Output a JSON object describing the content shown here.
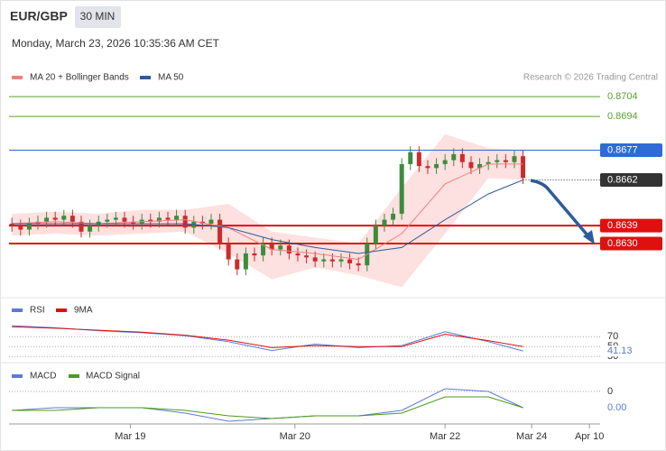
{
  "header": {
    "symbol": "EUR/GBP",
    "timeframe": "30 MIN",
    "datetime": "Monday, March 23, 2026 10:35:36 AM CET",
    "credit": "Research © 2026 Trading Central"
  },
  "chart_data": [
    {
      "type": "candlestick",
      "xlim": [
        0,
        204.7
      ],
      "xticks": [
        {
          "value": 42,
          "label": "Mar 19"
        },
        {
          "value": 99,
          "label": "Mar 20"
        },
        {
          "value": 151,
          "label": "Mar 22"
        },
        {
          "value": 181,
          "label": "Mar 24"
        },
        {
          "value": 201,
          "label": "Apr 10"
        }
      ],
      "ylim": [
        0.8605,
        0.87095
      ],
      "up_color": "#3c8c3c",
      "down_color": "#cc2b2b",
      "x": [
        1,
        4,
        7,
        10,
        13,
        16,
        19,
        22,
        25,
        28,
        31,
        34,
        37,
        40,
        43,
        46,
        49,
        52,
        55,
        58,
        61,
        64,
        67,
        70,
        73,
        76,
        79,
        82,
        85,
        88,
        91,
        94,
        97,
        100,
        103,
        106,
        109,
        112,
        115,
        118,
        121,
        124,
        127,
        130,
        133,
        136,
        139,
        142,
        145,
        148,
        151,
        154,
        157,
        160,
        163,
        166,
        169,
        172,
        175,
        178
      ],
      "open": [
        0.864,
        0.8639,
        0.8637,
        0.864,
        0.8641,
        0.8643,
        0.8642,
        0.8644,
        0.8641,
        0.8636,
        0.8639,
        0.8641,
        0.8642,
        0.8643,
        0.8641,
        0.864,
        0.8642,
        0.8641,
        0.8643,
        0.8642,
        0.8644,
        0.8638,
        0.8641,
        0.864,
        0.8642,
        0.863,
        0.8622,
        0.8617,
        0.8625,
        0.8624,
        0.863,
        0.8627,
        0.8629,
        0.8625,
        0.8624,
        0.8623,
        0.8621,
        0.8622,
        0.8621,
        0.8622,
        0.862,
        0.8619,
        0.863,
        0.8639,
        0.8642,
        0.8645,
        0.867,
        0.8676,
        0.8669,
        0.8668,
        0.867,
        0.8672,
        0.8675,
        0.8671,
        0.8668,
        0.867,
        0.8671,
        0.8672,
        0.8671,
        0.8674
      ],
      "high": [
        0.8643,
        0.8642,
        0.8643,
        0.8644,
        0.8646,
        0.8646,
        0.8647,
        0.8647,
        0.8644,
        0.8642,
        0.8644,
        0.8645,
        0.8646,
        0.8646,
        0.8644,
        0.8645,
        0.8645,
        0.8646,
        0.8646,
        0.8647,
        0.8647,
        0.8644,
        0.8644,
        0.8645,
        0.8645,
        0.8633,
        0.8625,
        0.8628,
        0.8628,
        0.8633,
        0.8633,
        0.8632,
        0.8632,
        0.8628,
        0.8627,
        0.8626,
        0.8625,
        0.8625,
        0.8625,
        0.8625,
        0.8623,
        0.8633,
        0.8642,
        0.8645,
        0.8648,
        0.8673,
        0.8679,
        0.8679,
        0.8672,
        0.8673,
        0.8675,
        0.8678,
        0.8678,
        0.8674,
        0.8673,
        0.8674,
        0.8675,
        0.8675,
        0.8677,
        0.8677
      ],
      "low": [
        0.8636,
        0.8634,
        0.8634,
        0.8637,
        0.8638,
        0.8639,
        0.8639,
        0.8638,
        0.8633,
        0.8633,
        0.8636,
        0.8638,
        0.8639,
        0.8638,
        0.8637,
        0.8637,
        0.8638,
        0.8638,
        0.8639,
        0.8639,
        0.8635,
        0.8635,
        0.8637,
        0.8637,
        0.8627,
        0.8619,
        0.8614,
        0.8614,
        0.8621,
        0.8621,
        0.8624,
        0.8624,
        0.8622,
        0.8621,
        0.862,
        0.8618,
        0.8618,
        0.8618,
        0.8618,
        0.8617,
        0.8616,
        0.8616,
        0.8627,
        0.8636,
        0.8639,
        0.8642,
        0.8667,
        0.8666,
        0.8665,
        0.8665,
        0.8667,
        0.8669,
        0.8668,
        0.8665,
        0.8665,
        0.8667,
        0.8668,
        0.8668,
        0.8668,
        0.866
      ],
      "close": [
        0.8639,
        0.8637,
        0.864,
        0.8641,
        0.8643,
        0.8642,
        0.8644,
        0.8641,
        0.8636,
        0.8639,
        0.8641,
        0.8642,
        0.8643,
        0.8641,
        0.864,
        0.8642,
        0.8641,
        0.8643,
        0.8642,
        0.8644,
        0.8638,
        0.8641,
        0.864,
        0.8642,
        0.863,
        0.8622,
        0.8617,
        0.8625,
        0.8624,
        0.863,
        0.8627,
        0.8629,
        0.8625,
        0.8624,
        0.8623,
        0.8621,
        0.8622,
        0.8621,
        0.8622,
        0.862,
        0.8619,
        0.863,
        0.8639,
        0.8642,
        0.8645,
        0.867,
        0.8676,
        0.8669,
        0.8668,
        0.867,
        0.8672,
        0.8675,
        0.8671,
        0.8668,
        0.867,
        0.8671,
        0.8672,
        0.8671,
        0.8674,
        0.8663
      ],
      "series": [
        {
          "name": "MA 20 + Bollinger Bands",
          "color": "#f08080",
          "band_color": "#fde0e0",
          "x": [
            1,
            16,
            31,
            46,
            61,
            76,
            91,
            106,
            121,
            136,
            151,
            166,
            178
          ],
          "values": [
            0.864,
            0.8641,
            0.864,
            0.8641,
            0.8642,
            0.8638,
            0.8627,
            0.8625,
            0.8622,
            0.8635,
            0.866,
            0.867,
            0.867
          ],
          "upper": [
            0.8645,
            0.8646,
            0.8645,
            0.8647,
            0.8647,
            0.865,
            0.8636,
            0.8633,
            0.863,
            0.8658,
            0.8685,
            0.8678,
            0.8677
          ],
          "lower": [
            0.8634,
            0.8635,
            0.8634,
            0.8635,
            0.8636,
            0.8625,
            0.8612,
            0.8618,
            0.8614,
            0.8608,
            0.8635,
            0.8663,
            0.8662
          ]
        },
        {
          "name": "MA 50",
          "color": "#2f5b9a",
          "x": [
            1,
            16,
            31,
            46,
            61,
            76,
            91,
            106,
            121,
            136,
            151,
            166,
            178
          ],
          "values": [
            0.864,
            0.864,
            0.864,
            0.864,
            0.864,
            0.8638,
            0.8632,
            0.8628,
            0.8625,
            0.8628,
            0.8642,
            0.8655,
            0.8662
          ]
        }
      ],
      "levels": [
        {
          "value": 0.8704,
          "label": "0.8704",
          "color": "#5aa02c",
          "boxed": false,
          "width": 1,
          "dotted": false
        },
        {
          "value": 0.8694,
          "label": "0.8694",
          "color": "#5aa02c",
          "boxed": false,
          "width": 1,
          "dotted": false
        },
        {
          "value": 0.8677,
          "label": "0.8677",
          "color": "#2e6bd6",
          "boxed": true,
          "width": 1,
          "dotted": false
        },
        {
          "value": 0.8662,
          "label": "0.8662",
          "color": "#333333",
          "boxed": true,
          "width": 1,
          "dotted": true
        },
        {
          "value": 0.8639,
          "label": "0.8639",
          "color": "#e01010",
          "boxed": true,
          "width": 2,
          "dotted": false
        },
        {
          "value": 0.863,
          "label": "0.8630",
          "color": "#e01010",
          "boxed": true,
          "width": 2,
          "dotted": false
        }
      ]
    },
    {
      "type": "line",
      "xlim": [
        0,
        204.7
      ],
      "ylim": [
        25,
        105
      ],
      "yticks": [
        70,
        50,
        30
      ],
      "series": [
        {
          "name": "RSI",
          "color": "#5b7bd5",
          "x": [
            1,
            16,
            31,
            46,
            61,
            76,
            91,
            106,
            121,
            136,
            151,
            166,
            178
          ],
          "values": [
            92,
            88,
            82,
            78,
            72,
            60,
            42,
            55,
            48,
            52,
            80,
            60,
            41.13
          ]
        },
        {
          "name": "9MA",
          "color": "#e01010",
          "x": [
            1,
            16,
            31,
            46,
            61,
            76,
            91,
            106,
            121,
            136,
            151,
            166,
            178
          ],
          "values": [
            90,
            87,
            83,
            79,
            73,
            63,
            48,
            52,
            50,
            50,
            75,
            62,
            50
          ]
        }
      ]
    },
    {
      "type": "line",
      "xlim": [
        0,
        204.7
      ],
      "ylim": [
        -0.0012,
        0.0003
      ],
      "yticks": [
        0
      ],
      "series": [
        {
          "name": "MACD",
          "color": "#5b7bd5",
          "x": [
            1,
            16,
            31,
            46,
            61,
            76,
            91,
            106,
            121,
            136,
            151,
            166,
            178
          ],
          "values": [
            -0.0007,
            -0.0006,
            -0.0006,
            -0.0006,
            -0.0008,
            -0.0011,
            -0.001,
            -0.0009,
            -0.0009,
            -0.0007,
            0.0001,
            0.0,
            -0.0006
          ],
          "value_labels": [
            null,
            null,
            null,
            null,
            null,
            null,
            null,
            null,
            null,
            null,
            null,
            null,
            "0.00"
          ]
        },
        {
          "name": "MACD Signal",
          "color": "#4c9a1a",
          "x": [
            1,
            16,
            31,
            46,
            61,
            76,
            91,
            106,
            121,
            136,
            151,
            166,
            178
          ],
          "values": [
            -0.0007,
            -0.0007,
            -0.0006,
            -0.0006,
            -0.0007,
            -0.0009,
            -0.001,
            -0.0009,
            -0.0009,
            -0.0008,
            -0.0002,
            -0.0002,
            -0.0006
          ]
        }
      ]
    }
  ]
}
